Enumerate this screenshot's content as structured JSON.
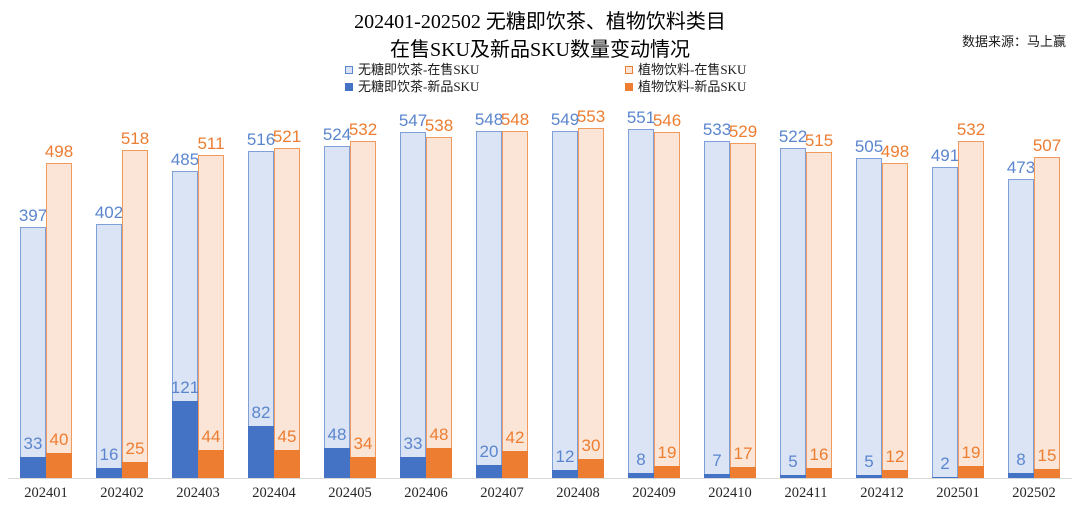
{
  "header": {
    "title_line1": "202401-202502 无糖即饮茶、植物饮料类目",
    "title_line2": "在售SKU及新品SKU数量变动情况",
    "source": "数据来源：马上赢"
  },
  "chart_data": {
    "type": "bar",
    "title": "202401-202502 无糖即饮茶、植物饮料类目 在售SKU及新品SKU数量变动情况",
    "source": "数据来源：马上赢",
    "legend_position": "top",
    "grid": false,
    "ylim": [
      0,
      556
    ],
    "categories": [
      "202401",
      "202402",
      "202403",
      "202404",
      "202405",
      "202406",
      "202407",
      "202408",
      "202409",
      "202410",
      "202411",
      "202412",
      "202501",
      "202502"
    ],
    "series": [
      {
        "name": "无糖即饮茶-在售SKU",
        "role": "onsale",
        "values": [
          397,
          402,
          485,
          516,
          524,
          547,
          548,
          549,
          551,
          533,
          522,
          505,
          491,
          473
        ],
        "fill": "#DBE4F4",
        "border": "#7F9FD9",
        "label_color": "#5B86CE",
        "legend_style": "outline",
        "legend_marker_border": "#5B86CE"
      },
      {
        "name": "植物饮料-在售SKU",
        "role": "onsale",
        "values": [
          498,
          518,
          511,
          521,
          532,
          538,
          548,
          553,
          546,
          529,
          515,
          498,
          532,
          507
        ],
        "fill": "#FBE5D6",
        "border": "#F09A5D",
        "label_color": "#ED7D31",
        "legend_style": "outline",
        "legend_marker_border": "#ED7D31"
      },
      {
        "name": "无糖即饮茶-新品SKU",
        "role": "new",
        "values": [
          33,
          16,
          121,
          82,
          48,
          33,
          20,
          12,
          8,
          7,
          5,
          5,
          2,
          8
        ],
        "fill": "#4472C4",
        "label_color": "#5B86CE",
        "legend_style": "solid",
        "legend_marker_border": "#4472C4"
      },
      {
        "name": "植物饮料-新品SKU",
        "role": "new",
        "values": [
          40,
          25,
          44,
          45,
          34,
          48,
          42,
          30,
          19,
          17,
          16,
          12,
          19,
          15
        ],
        "fill": "#ED7D31",
        "label_color": "#ED7D31",
        "legend_style": "solid",
        "legend_marker_border": "#ED7D31"
      }
    ],
    "axis_line_color": "#D9D9D9",
    "category_label_color": "#262626"
  }
}
